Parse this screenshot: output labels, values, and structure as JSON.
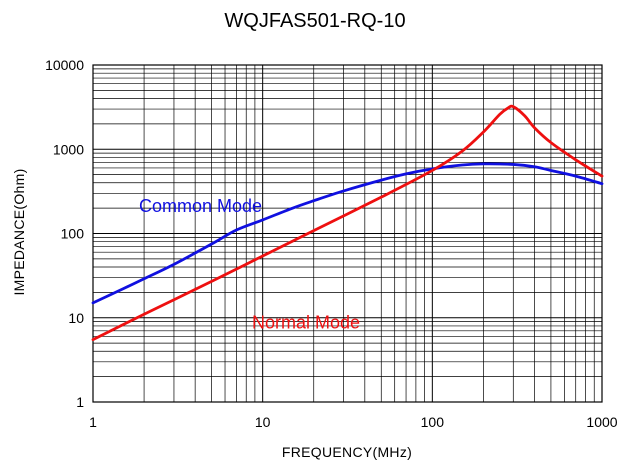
{
  "chart_data": {
    "type": "line",
    "title": "WQJFAS501-RQ-10",
    "xlabel": "FREQUENCY(MHz)",
    "ylabel": "IMPEDANCE(Ohm)",
    "xscale": "log",
    "yscale": "log",
    "xlim": [
      1,
      1000
    ],
    "ylim": [
      1,
      10000
    ],
    "x_ticks": [
      1,
      10,
      100,
      1000
    ],
    "y_ticks": [
      1,
      10,
      100,
      1000,
      10000
    ],
    "x_tick_labels": [
      "1",
      "10",
      "100",
      "1000"
    ],
    "y_tick_labels": [
      "1",
      "10",
      "100",
      "1000",
      "10000"
    ],
    "grid": true,
    "legend": "none",
    "series": [
      {
        "name": "Common Mode",
        "color": "#1010e0",
        "x": [
          1,
          1.5,
          2,
          3,
          5,
          7,
          10,
          15,
          20,
          30,
          50,
          70,
          100,
          150,
          200,
          300,
          400,
          500,
          700,
          1000
        ],
        "y": [
          15,
          22,
          29,
          43,
          75,
          110,
          145,
          200,
          245,
          320,
          430,
          510,
          585,
          650,
          670,
          660,
          620,
          560,
          480,
          390
        ]
      },
      {
        "name": "Normal Mode",
        "color": "#ee1010",
        "x": [
          1,
          2,
          5,
          10,
          20,
          50,
          100,
          150,
          200,
          250,
          280,
          300,
          350,
          400,
          500,
          700,
          1000
        ],
        "y": [
          5.5,
          11,
          27,
          54,
          108,
          270,
          560,
          950,
          1600,
          2600,
          3100,
          3200,
          2500,
          1800,
          1200,
          750,
          480
        ]
      }
    ],
    "annotations": [
      {
        "text": "Common Mode",
        "color": "#1010e0",
        "x": 4.3,
        "y": 180
      },
      {
        "text": "Normal Mode",
        "color": "#ee1010",
        "x": 18,
        "y": 7.5
      }
    ]
  }
}
